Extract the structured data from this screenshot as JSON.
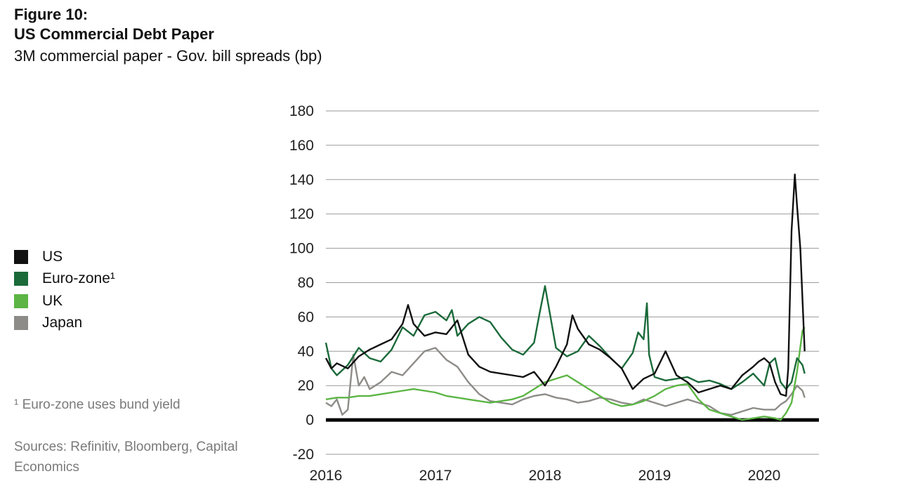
{
  "figure_label": "Figure 10:",
  "chart_data": {
    "type": "line",
    "title": "US Commercial Debt Paper",
    "subtitle": "3M commercial paper - Gov. bill spreads (bp)",
    "xlabel": "",
    "ylabel": "",
    "xlim": [
      2016.0,
      2020.5
    ],
    "ylim": [
      -20,
      180
    ],
    "x_ticks": [
      2016,
      2017,
      2018,
      2019,
      2020
    ],
    "y_ticks": [
      180,
      160,
      140,
      120,
      100,
      80,
      60,
      40,
      20,
      0,
      -20
    ],
    "grid": "horizontal",
    "legend_position": "left",
    "series": [
      {
        "name": "US",
        "color": "#111111",
        "x": [
          2016.0,
          2016.05,
          2016.1,
          2016.2,
          2016.3,
          2016.4,
          2016.5,
          2016.6,
          2016.7,
          2016.75,
          2016.8,
          2016.9,
          2017.0,
          2017.1,
          2017.2,
          2017.3,
          2017.4,
          2017.5,
          2017.6,
          2017.7,
          2017.8,
          2017.9,
          2018.0,
          2018.1,
          2018.2,
          2018.25,
          2018.3,
          2018.4,
          2018.5,
          2018.6,
          2018.7,
          2018.8,
          2018.9,
          2019.0,
          2019.1,
          2019.2,
          2019.3,
          2019.4,
          2019.5,
          2019.6,
          2019.7,
          2019.8,
          2019.9,
          2019.95,
          2020.0,
          2020.05,
          2020.1,
          2020.15,
          2020.2,
          2020.22,
          2020.25,
          2020.28,
          2020.3,
          2020.33,
          2020.35,
          2020.37
        ],
        "values": [
          36,
          30,
          33,
          30,
          37,
          41,
          44,
          47,
          56,
          67,
          56,
          49,
          51,
          50,
          58,
          38,
          31,
          28,
          27,
          26,
          25,
          28,
          20,
          31,
          44,
          61,
          53,
          44,
          41,
          36,
          30,
          18,
          24,
          27,
          40,
          26,
          22,
          16,
          18,
          20,
          18,
          26,
          31,
          34,
          36,
          33,
          22,
          15,
          14,
          30,
          110,
          143,
          125,
          100,
          70,
          40
        ]
      },
      {
        "name": "Euro-zone¹",
        "color": "#1b6a3a",
        "x": [
          2016.0,
          2016.05,
          2016.1,
          2016.2,
          2016.3,
          2016.4,
          2016.5,
          2016.6,
          2016.7,
          2016.8,
          2016.9,
          2017.0,
          2017.1,
          2017.15,
          2017.2,
          2017.3,
          2017.4,
          2017.5,
          2017.6,
          2017.7,
          2017.8,
          2017.9,
          2017.95,
          2018.0,
          2018.1,
          2018.2,
          2018.3,
          2018.4,
          2018.5,
          2018.6,
          2018.7,
          2018.8,
          2018.85,
          2018.9,
          2018.93,
          2018.95,
          2019.0,
          2019.1,
          2019.2,
          2019.3,
          2019.4,
          2019.5,
          2019.6,
          2019.7,
          2019.8,
          2019.9,
          2020.0,
          2020.05,
          2020.1,
          2020.15,
          2020.2,
          2020.25,
          2020.3,
          2020.35,
          2020.37
        ],
        "values": [
          45,
          30,
          26,
          32,
          42,
          36,
          34,
          41,
          54,
          49,
          61,
          63,
          58,
          64,
          49,
          56,
          60,
          57,
          48,
          41,
          38,
          45,
          62,
          78,
          42,
          37,
          40,
          49,
          43,
          36,
          30,
          39,
          51,
          47,
          68,
          38,
          25,
          23,
          24,
          25,
          22,
          23,
          21,
          18,
          22,
          27,
          20,
          33,
          36,
          22,
          18,
          22,
          36,
          32,
          27
        ]
      },
      {
        "name": "UK",
        "color": "#5cb545",
        "x": [
          2016.0,
          2016.1,
          2016.2,
          2016.3,
          2016.4,
          2016.5,
          2016.6,
          2016.7,
          2016.8,
          2016.9,
          2017.0,
          2017.1,
          2017.2,
          2017.3,
          2017.4,
          2017.5,
          2017.6,
          2017.7,
          2017.8,
          2017.9,
          2018.0,
          2018.1,
          2018.2,
          2018.3,
          2018.4,
          2018.5,
          2018.6,
          2018.7,
          2018.8,
          2018.9,
          2019.0,
          2019.1,
          2019.2,
          2019.3,
          2019.4,
          2019.5,
          2019.6,
          2019.7,
          2019.8,
          2019.9,
          2020.0,
          2020.1,
          2020.15,
          2020.2,
          2020.25,
          2020.3,
          2020.35,
          2020.37
        ],
        "values": [
          12,
          13,
          13,
          14,
          14,
          15,
          16,
          17,
          18,
          17,
          16,
          14,
          13,
          12,
          11,
          10,
          11,
          12,
          14,
          18,
          22,
          24,
          26,
          22,
          18,
          14,
          10,
          8,
          9,
          11,
          14,
          18,
          20,
          21,
          12,
          6,
          4,
          2,
          0,
          1,
          2,
          1,
          0,
          4,
          10,
          28,
          52,
          54
        ]
      },
      {
        "name": "Japan",
        "color": "#8e8c88",
        "x": [
          2016.0,
          2016.05,
          2016.1,
          2016.15,
          2016.2,
          2016.25,
          2016.3,
          2016.35,
          2016.4,
          2016.5,
          2016.6,
          2016.7,
          2016.8,
          2016.9,
          2017.0,
          2017.1,
          2017.2,
          2017.3,
          2017.4,
          2017.5,
          2017.6,
          2017.7,
          2017.8,
          2017.9,
          2018.0,
          2018.1,
          2018.2,
          2018.3,
          2018.4,
          2018.5,
          2018.6,
          2018.7,
          2018.8,
          2018.9,
          2019.0,
          2019.1,
          2019.2,
          2019.3,
          2019.4,
          2019.5,
          2019.6,
          2019.7,
          2019.8,
          2019.9,
          2020.0,
          2020.1,
          2020.15,
          2020.2,
          2020.25,
          2020.3,
          2020.35,
          2020.37
        ],
        "values": [
          10,
          8,
          12,
          3,
          6,
          38,
          20,
          25,
          18,
          22,
          28,
          26,
          33,
          40,
          42,
          35,
          31,
          22,
          15,
          11,
          10,
          9,
          12,
          14,
          15,
          13,
          12,
          10,
          11,
          13,
          12,
          10,
          9,
          12,
          10,
          8,
          10,
          12,
          10,
          8,
          4,
          3,
          5,
          7,
          6,
          6,
          9,
          11,
          15,
          20,
          17,
          13
        ]
      }
    ]
  },
  "footnote": "¹ Euro-zone uses bund yield",
  "sources": "Sources: Refinitiv, Bloomberg, Capital Economics"
}
